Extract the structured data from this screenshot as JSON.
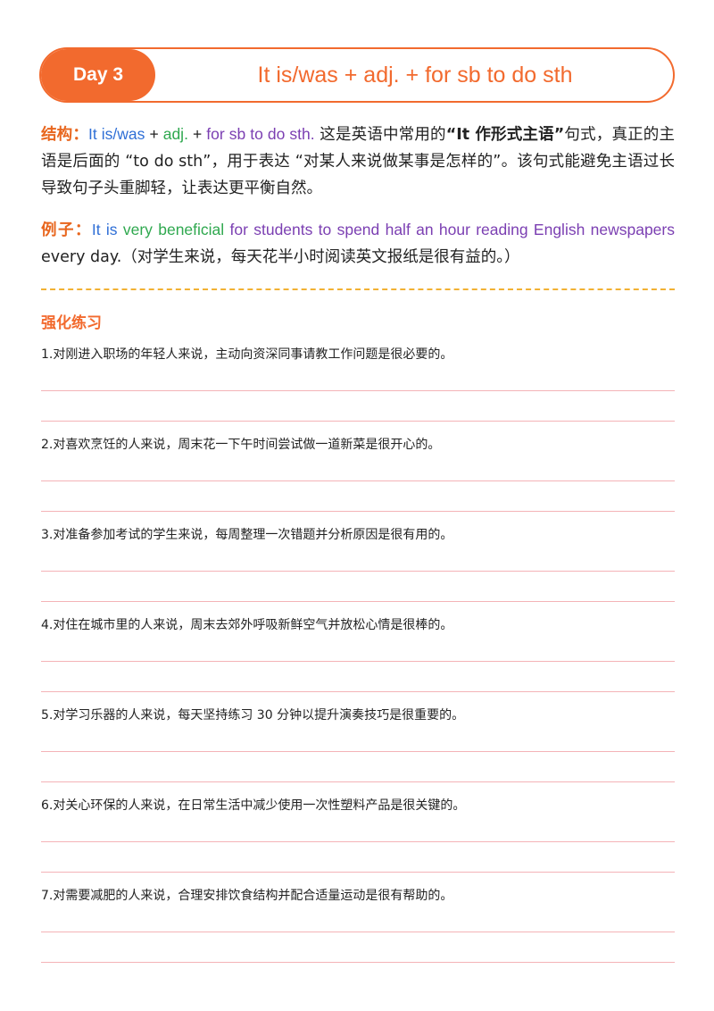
{
  "header": {
    "day": "Day 3",
    "title": "It is/was + adj. + for sb to do sth"
  },
  "structure": {
    "label": "结构：",
    "part_it": "It is/was",
    "plus1": " + ",
    "part_adj": "adj.",
    "plus2": " + ",
    "part_for": "for sb to do sth.",
    "text1": "  这是英语中常用的",
    "bold_term": "“It 作形式主语”",
    "text2": "句式，真正的主语是后面的 “to do sth”，用于表达 “对某人来说做某事是怎样的”。该句式能避免主语过长导致句子头重脚轻，让表达更平衡自然。"
  },
  "example": {
    "label": "例子：",
    "part_it": "It is ",
    "part_adj": "very beneficial ",
    "part_for": "for students to spend half an hour reading English newspapers",
    "rest": " every day.（对学生来说，每天花半小时阅读英文报纸是很有益的。）"
  },
  "practice": {
    "title": "强化练习",
    "questions": [
      "1.对刚进入职场的年轻人来说，主动向资深同事请教工作问题是很必要的。",
      "2.对喜欢烹饪的人来说，周末花一下午时间尝试做一道新菜是很开心的。",
      "3.对准备参加考试的学生来说，每周整理一次错题并分析原因是很有用的。",
      "4.对住在城市里的人来说，周末去郊外呼吸新鲜空气并放松心情是很棒的。",
      "5.对学习乐器的人来说，每天坚持练习 30 分钟以提升演奏技巧是很重要的。",
      "6.对关心环保的人来说，在日常生活中减少使用一次性塑料产品是很关键的。",
      "7.对需要减肥的人来说，合理安排饮食结构并配合适量运动是很有帮助的。"
    ]
  },
  "colors": {
    "accent": "#f26a2e",
    "blue": "#2f6fd6",
    "green": "#2fa84f",
    "purple": "#7b3fb2",
    "dash": "#f2b134",
    "writing_line": "#f4b3b7"
  }
}
